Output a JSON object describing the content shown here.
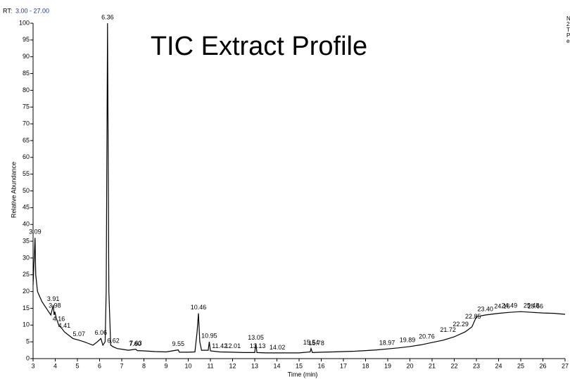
{
  "chart_data": {
    "type": "line",
    "title": "TIC Extract Profile",
    "rt_prefix": "RT:",
    "rt_range": "3.00 - 27.00",
    "side_text": [
      "N",
      "2",
      "T",
      "P",
      "e"
    ],
    "x_label": "Time (min)",
    "y_label": "Relative Abundance",
    "xlim": [
      3,
      27
    ],
    "ylim": [
      0,
      100
    ],
    "xticks": [
      3,
      4,
      5,
      6,
      7,
      8,
      9,
      10,
      11,
      12,
      13,
      14,
      15,
      16,
      17,
      18,
      19,
      20,
      21,
      22,
      23,
      24,
      25,
      26,
      27
    ],
    "yticks": [
      0,
      5,
      10,
      15,
      20,
      25,
      30,
      35,
      40,
      45,
      50,
      55,
      60,
      65,
      70,
      75,
      80,
      85,
      90,
      95,
      100
    ],
    "trace": {
      "color": "#000000",
      "x": [
        3.0,
        3.05,
        3.09,
        3.12,
        3.2,
        3.4,
        3.6,
        3.8,
        3.91,
        3.95,
        3.98,
        4.05,
        4.16,
        4.3,
        4.41,
        4.6,
        4.8,
        5.07,
        5.3,
        5.5,
        5.7,
        5.9,
        6.06,
        6.15,
        6.25,
        6.3,
        6.36,
        6.42,
        6.5,
        6.62,
        6.8,
        7.0,
        7.3,
        7.63,
        7.7,
        8.0,
        8.5,
        9.0,
        9.55,
        9.6,
        10.0,
        10.3,
        10.4,
        10.46,
        10.52,
        10.6,
        10.9,
        10.95,
        11.0,
        11.42,
        12.0,
        12.5,
        13.0,
        13.05,
        13.1,
        13.5,
        14.0,
        14.5,
        15.0,
        15.5,
        15.54,
        15.6,
        16.0,
        16.5,
        17.0,
        17.5,
        18.0,
        18.5,
        19.0,
        19.5,
        20.0,
        20.5,
        21.0,
        21.5,
        22.0,
        22.5,
        22.8,
        23.0,
        23.4,
        24.0,
        24.5,
        25.0,
        25.5,
        26.0,
        26.5,
        27.0
      ],
      "values": [
        22,
        30,
        36,
        25,
        20,
        17,
        15,
        13,
        16,
        13,
        14,
        12,
        10,
        9,
        8,
        7,
        6,
        5.5,
        5,
        4.5,
        4,
        5,
        6,
        4,
        5,
        20,
        100,
        20,
        4,
        3.5,
        3,
        2.8,
        2.5,
        2.8,
        2.4,
        2.3,
        2.1,
        2,
        2.6,
        1.9,
        1.9,
        2,
        8,
        13.5,
        5,
        2.5,
        2.5,
        5,
        2.3,
        2,
        1.9,
        1.8,
        1.8,
        4.5,
        1.8,
        1.7,
        1.7,
        1.7,
        1.7,
        2,
        3,
        1.8,
        1.9,
        2,
        2.1,
        2.2,
        2.4,
        2.6,
        2.9,
        3.2,
        3.6,
        4.1,
        4.8,
        5.5,
        6.5,
        8,
        9.5,
        12.5,
        13,
        13.5,
        13.8,
        14,
        13.8,
        13.6,
        13.5,
        13.2
      ]
    },
    "peaks": [
      {
        "label": "3.09",
        "rt": 3.09,
        "abundance": 36
      },
      {
        "label": "3.91",
        "rt": 3.91,
        "abundance": 16
      },
      {
        "label": "3.98",
        "rt": 3.98,
        "abundance": 14
      },
      {
        "label": "4.16",
        "rt": 4.16,
        "abundance": 10
      },
      {
        "label": "4.41",
        "rt": 4.41,
        "abundance": 8
      },
      {
        "label": "5.07",
        "rt": 5.07,
        "abundance": 5.5
      },
      {
        "label": "6.06",
        "rt": 6.06,
        "abundance": 6
      },
      {
        "label": "6.36",
        "rt": 6.36,
        "abundance": 100
      },
      {
        "label": "6.62",
        "rt": 6.62,
        "abundance": 3.5
      },
      {
        "label": "7.63",
        "rt": 7.63,
        "abundance": 2.8
      },
      {
        "label": "7.60",
        "rt": 7.6,
        "abundance": 2.6
      },
      {
        "label": "9.55",
        "rt": 9.55,
        "abundance": 2.6
      },
      {
        "label": "10.46",
        "rt": 10.46,
        "abundance": 13.5
      },
      {
        "label": "10.95",
        "rt": 10.95,
        "abundance": 5
      },
      {
        "label": "11.42",
        "rt": 11.42,
        "abundance": 2
      },
      {
        "label": "12.01",
        "rt": 12.01,
        "abundance": 2
      },
      {
        "label": "13.05",
        "rt": 13.05,
        "abundance": 4.5
      },
      {
        "label": "13.13",
        "rt": 13.13,
        "abundance": 2
      },
      {
        "label": "14.02",
        "rt": 14.02,
        "abundance": 1.5
      },
      {
        "label": "15.54",
        "rt": 15.54,
        "abundance": 3
      },
      {
        "label": "15.78",
        "rt": 15.78,
        "abundance": 2.8
      },
      {
        "label": "18.97",
        "rt": 18.97,
        "abundance": 2.9
      },
      {
        "label": "19.89",
        "rt": 19.89,
        "abundance": 3.7
      },
      {
        "label": "20.76",
        "rt": 20.76,
        "abundance": 4.8
      },
      {
        "label": "21.72",
        "rt": 21.72,
        "abundance": 6.8
      },
      {
        "label": "22.29",
        "rt": 22.29,
        "abundance": 8.5
      },
      {
        "label": "22.85",
        "rt": 22.85,
        "abundance": 10.8
      },
      {
        "label": "23.40",
        "rt": 23.4,
        "abundance": 13
      },
      {
        "label": "24.16",
        "rt": 24.16,
        "abundance": 13.8
      },
      {
        "label": "24.49",
        "rt": 24.49,
        "abundance": 14
      },
      {
        "label": "25.48",
        "rt": 25.48,
        "abundance": 14
      },
      {
        "label": "25.66",
        "rt": 25.66,
        "abundance": 13.8
      }
    ]
  }
}
